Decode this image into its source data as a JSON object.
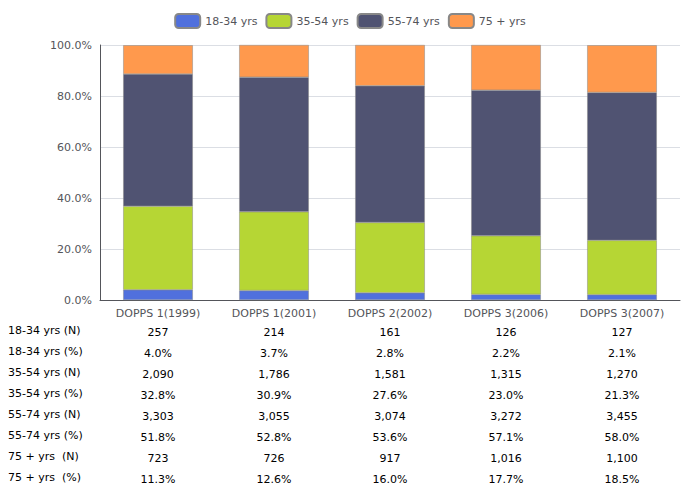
{
  "chart_data": {
    "type": "bar",
    "stacked": true,
    "categories": [
      "DOPPS 1(1999)",
      "DOPPS 1(2001)",
      "DOPPS 2(2002)",
      "DOPPS 3(2006)",
      "DOPPS 3(2007)"
    ],
    "series": [
      {
        "name": "18-34 yrs",
        "values": [
          4.0,
          3.7,
          2.8,
          2.2,
          2.1
        ]
      },
      {
        "name": "35-54 yrs",
        "values": [
          32.8,
          30.9,
          27.6,
          23.0,
          21.3
        ]
      },
      {
        "name": "55-74 yrs",
        "values": [
          51.8,
          52.8,
          53.6,
          57.1,
          58.0
        ]
      },
      {
        "name": "75 + yrs",
        "values": [
          11.3,
          12.6,
          16.0,
          17.7,
          18.5
        ]
      }
    ],
    "ylim": [
      0,
      100
    ],
    "yticks": [
      {
        "value": 0,
        "label": "0.0%"
      },
      {
        "value": 20,
        "label": "20.0%"
      },
      {
        "value": 40,
        "label": "40.0%"
      },
      {
        "value": 60,
        "label": "60.0%"
      },
      {
        "value": 80,
        "label": "80.0%"
      },
      {
        "value": 100,
        "label": "100.0%"
      }
    ],
    "grid": true,
    "legend": "top",
    "table": [
      {
        "label": "18-34 yrs (N)",
        "cells": [
          "257",
          "214",
          "161",
          "126",
          "127"
        ]
      },
      {
        "label": "18-34 yrs (%)",
        "cells": [
          "4.0%",
          "3.7%",
          "2.8%",
          "2.2%",
          "2.1%"
        ]
      },
      {
        "label": "35-54 yrs (N)",
        "cells": [
          "2,090",
          "1,786",
          "1,581",
          "1,315",
          "1,270"
        ]
      },
      {
        "label": "35-54 yrs (%)",
        "cells": [
          "32.8%",
          "30.9%",
          "27.6%",
          "23.0%",
          "21.3%"
        ]
      },
      {
        "label": "55-74 yrs (N)",
        "cells": [
          "3,303",
          "3,055",
          "3,074",
          "3,272",
          "3,455"
        ]
      },
      {
        "label": "55-74 yrs (%)",
        "cells": [
          "51.8%",
          "52.8%",
          "53.6%",
          "57.1%",
          "58.0%"
        ]
      },
      {
        "label": "75 + yrs  (N)",
        "cells": [
          "723",
          "726",
          "917",
          "1,016",
          "1,100"
        ]
      },
      {
        "label": "75 + yrs  (%)",
        "cells": [
          "11.3%",
          "12.6%",
          "16.0%",
          "17.7%",
          "18.5%"
        ]
      }
    ]
  }
}
